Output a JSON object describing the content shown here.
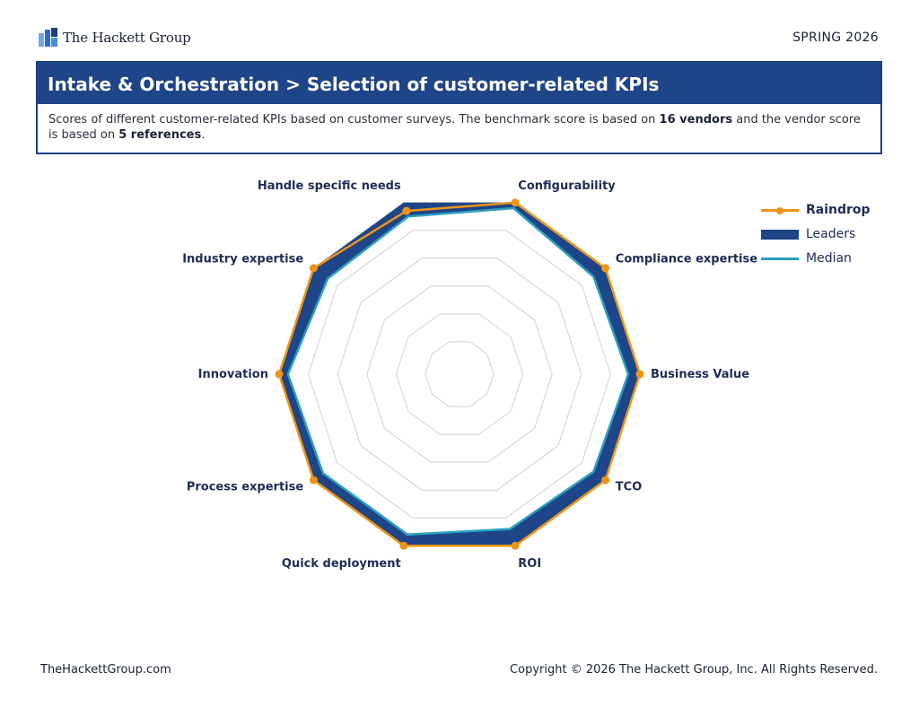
{
  "header": {
    "company": "The Hackett Group",
    "edition": "SPRING 2026"
  },
  "banner": {
    "title": "Intake & Orchestration > Selection of customer-related KPIs",
    "desc_part1": "Scores of different customer-related KPIs based on customer surveys. The benchmark score is based on ",
    "desc_bold1": "16 vendors",
    "desc_part2": " and the vendor score is based on ",
    "desc_bold2": "5 references",
    "desc_part3": "."
  },
  "chart_data": {
    "type": "radar",
    "categories": [
      "Configurability",
      "Compliance expertise",
      "Business Value",
      "TCO",
      "ROI",
      "Quick deployment",
      "Process expertise",
      "Innovation",
      "Industry expertise",
      "Handle specific needs"
    ],
    "rmin": 0.5,
    "rmax": 1.0,
    "grid_levels": [
      0.5,
      0.6,
      0.7,
      0.8,
      0.9,
      1.0
    ],
    "series": [
      {
        "name": "Raindrop",
        "values": [
          1.0,
          1.0,
          1.0,
          1.0,
          1.0,
          1.0,
          1.0,
          1.0,
          1.0,
          0.97
        ],
        "color": "#ee9418",
        "style": "line-marker"
      },
      {
        "name": "Leaders",
        "values": [
          1.0,
          1.0,
          1.0,
          1.0,
          1.0,
          1.0,
          1.0,
          1.0,
          1.0,
          1.0
        ],
        "color": "#1d4587",
        "style": "band-outer"
      },
      {
        "name": "Median",
        "values": [
          0.98,
          0.95,
          0.96,
          0.95,
          0.94,
          0.96,
          0.96,
          0.97,
          0.94,
          0.95
        ],
        "color": "#2c9fc0",
        "style": "line"
      }
    ]
  },
  "legend": {
    "items": [
      {
        "label": "Raindrop",
        "color": "#ee9418",
        "kind": "line-marker"
      },
      {
        "label": "Leaders",
        "color": "#1d4587",
        "kind": "fill"
      },
      {
        "label": "Median",
        "color": "#2c9fc0",
        "kind": "line"
      }
    ]
  },
  "footer": {
    "site": "TheHackettGroup.com",
    "copyright": "Copyright © 2026 The Hackett Group, Inc. All Rights Reserved."
  }
}
